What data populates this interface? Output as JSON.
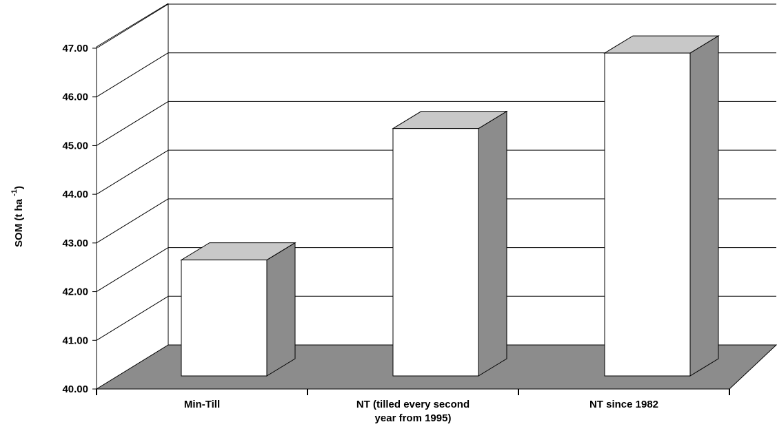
{
  "chart_data": {
    "type": "bar",
    "style": "3d",
    "title": "",
    "xlabel": "",
    "ylabel": "SOM (t ha",
    "ylabel_superscript": "-1",
    "ylabel_close": ")",
    "ylim": [
      40,
      47
    ],
    "y_ticks": [
      "40.00",
      "41.00",
      "42.00",
      "43.00",
      "44.00",
      "45.00",
      "46.00",
      "47.00"
    ],
    "grid": true,
    "legend": "none",
    "categories": [
      [
        "Min-Till"
      ],
      [
        "NT (tilled every second",
        "year from 1995)"
      ],
      [
        "NT since 1982"
      ]
    ],
    "values": [
      42.65,
      45.35,
      46.9
    ],
    "colors": {
      "bar_front": "#ffffff",
      "bar_top": "#c8c8c8",
      "bar_side": "#8c8c8c",
      "floor": "#8c8c8c",
      "lines": "#000000"
    }
  }
}
